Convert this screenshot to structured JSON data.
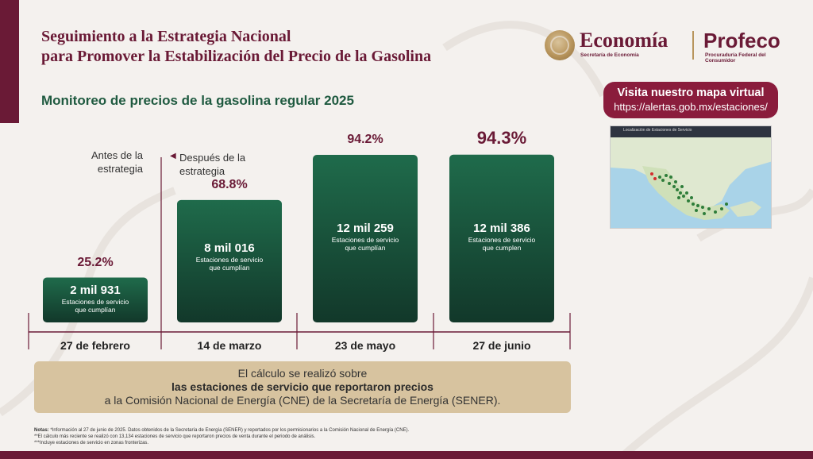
{
  "header": {
    "title_line1": "Seguimiento a la Estrategia Nacional",
    "title_line2": "para Promover la Estabilización del Precio de la Gasolina",
    "subtitle": "Monitoreo de precios de la gasolina regular 2025"
  },
  "logos": {
    "economia_name": "Economía",
    "economia_sub": "Secretaría de Economía",
    "profeco_name": "Profeco",
    "profeco_sub": "Procuraduría Federal del Consumidor"
  },
  "map_link": {
    "label": "Visita nuestro mapa virtual",
    "url": "https://alertas.gob.mx/estaciones/",
    "map_title": "Localización de Estaciones de Servicio"
  },
  "annotations": {
    "before": "Antes de la estrategia",
    "after": "Después de la estrategia"
  },
  "chart_data": {
    "type": "bar",
    "categories": [
      "27 de febrero",
      "14 de marzo",
      "23 de mayo",
      "27 de junio"
    ],
    "values": [
      25.2,
      68.8,
      94.2,
      94.3
    ],
    "value_labels": [
      "25.2%",
      "68.8%",
      "94.2%",
      "94.3%"
    ],
    "stations": [
      "2 mil 931",
      "8 mil 016",
      "12 mil 259",
      "12 mil 386"
    ],
    "station_captions": [
      "Estaciones de servicio que cumplían",
      "Estaciones de servicio que cumplían",
      "Estaciones de servicio que cumplían",
      "Estaciones de servicio que cumplen"
    ],
    "unit": "%",
    "ylim": [
      0,
      100
    ],
    "grid": false,
    "colors": {
      "bar_top": "#1f6b4b",
      "bar_bottom": "#12382a",
      "value_label": "#6a1a36",
      "axis": "#6a1a36"
    }
  },
  "note": {
    "line1": "El cálculo se realizó sobre",
    "line2": "las estaciones de servicio que reportaron precios",
    "line3": "a la Comisión Nacional de Energía (CNE) de la Secretaría de Energía (SENER)."
  },
  "footnotes": {
    "label": "Notas:",
    "n1": "*Información al 27 de junio de 2025. Datos obtenidos de la Secretaría de Energía (SENER) y reportados por los permisionarios a la Comisión Nacional de Energía (CNE).",
    "n2": "**El cálculo más reciente se realizó con 13,134 estaciones de servicio que reportaron precios de venta durante el periodo de análisis.",
    "n3": "***Incluye estaciones de servicio en zonas fronterizas."
  },
  "colors": {
    "brand": "#6a1a36",
    "green": "#1f5a40",
    "note_bg": "#d7c39f"
  }
}
